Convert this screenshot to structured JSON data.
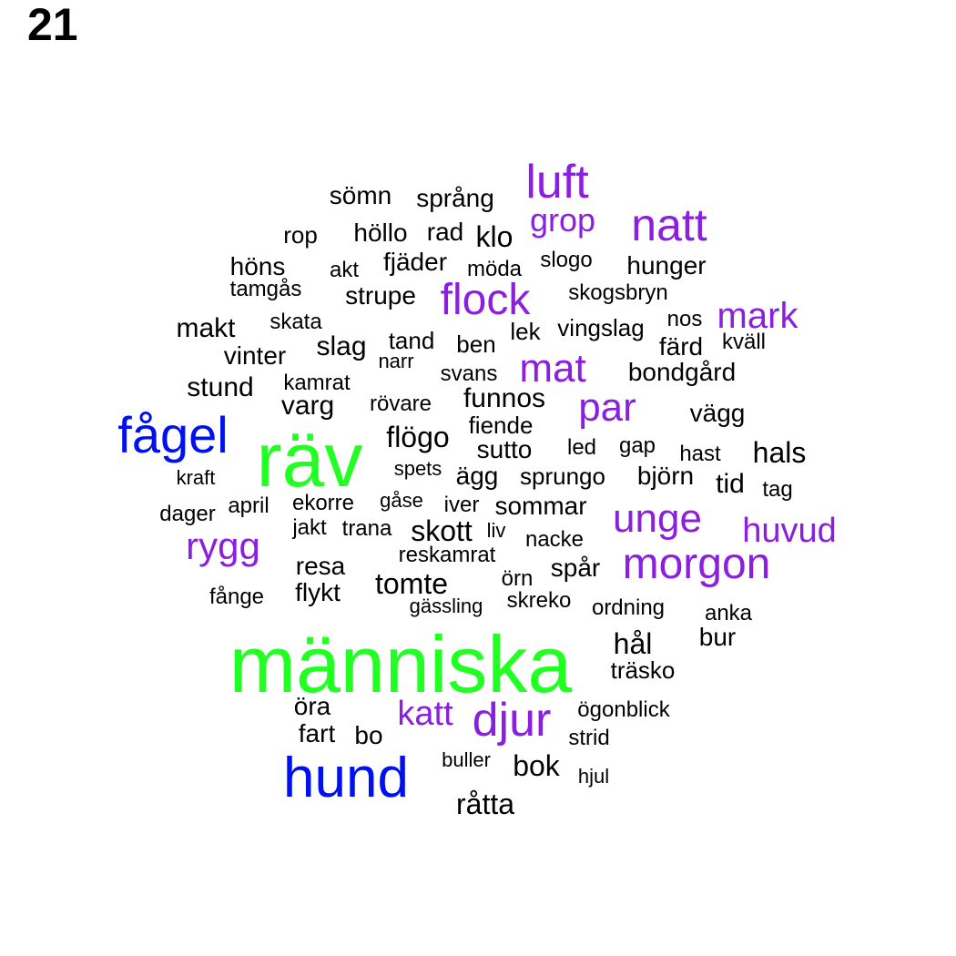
{
  "page_number": "21",
  "colors": {
    "huge": "#22ff22",
    "blue": "#0011ee",
    "purple": "#8a1fe0",
    "black": "#000000"
  },
  "words": [
    {
      "text": "människa",
      "tier": "huge"
    },
    {
      "text": "räv",
      "tier": "huge"
    },
    {
      "text": "hund",
      "tier": "blue"
    },
    {
      "text": "fågel",
      "tier": "blue"
    },
    {
      "text": "luft",
      "tier": "purple"
    },
    {
      "text": "natt",
      "tier": "purple"
    },
    {
      "text": "grop",
      "tier": "purple"
    },
    {
      "text": "flock",
      "tier": "purple"
    },
    {
      "text": "mark",
      "tier": "purple"
    },
    {
      "text": "mat",
      "tier": "purple"
    },
    {
      "text": "par",
      "tier": "purple"
    },
    {
      "text": "unge",
      "tier": "purple"
    },
    {
      "text": "huvud",
      "tier": "purple"
    },
    {
      "text": "rygg",
      "tier": "purple"
    },
    {
      "text": "morgon",
      "tier": "purple"
    },
    {
      "text": "katt",
      "tier": "purple"
    },
    {
      "text": "djur",
      "tier": "purple"
    },
    {
      "text": "sömn",
      "tier": "black"
    },
    {
      "text": "språng",
      "tier": "black"
    },
    {
      "text": "rop",
      "tier": "black"
    },
    {
      "text": "höllo",
      "tier": "black"
    },
    {
      "text": "rad",
      "tier": "black"
    },
    {
      "text": "klo",
      "tier": "black"
    },
    {
      "text": "fjäder",
      "tier": "black"
    },
    {
      "text": "möda",
      "tier": "black"
    },
    {
      "text": "slogo",
      "tier": "black"
    },
    {
      "text": "hunger",
      "tier": "black"
    },
    {
      "text": "höns",
      "tier": "black"
    },
    {
      "text": "akt",
      "tier": "black"
    },
    {
      "text": "tamgås",
      "tier": "black"
    },
    {
      "text": "strupe",
      "tier": "black"
    },
    {
      "text": "skogsbryn",
      "tier": "black"
    },
    {
      "text": "makt",
      "tier": "black"
    },
    {
      "text": "skata",
      "tier": "black"
    },
    {
      "text": "lek",
      "tier": "black"
    },
    {
      "text": "vingslag",
      "tier": "black"
    },
    {
      "text": "nos",
      "tier": "black"
    },
    {
      "text": "vinter",
      "tier": "black"
    },
    {
      "text": "slag",
      "tier": "black"
    },
    {
      "text": "tand",
      "tier": "black"
    },
    {
      "text": "ben",
      "tier": "black"
    },
    {
      "text": "färd",
      "tier": "black"
    },
    {
      "text": "kväll",
      "tier": "black"
    },
    {
      "text": "narr",
      "tier": "black"
    },
    {
      "text": "stund",
      "tier": "black"
    },
    {
      "text": "kamrat",
      "tier": "black"
    },
    {
      "text": "svans",
      "tier": "black"
    },
    {
      "text": "bondgård",
      "tier": "black"
    },
    {
      "text": "varg",
      "tier": "black"
    },
    {
      "text": "rövare",
      "tier": "black"
    },
    {
      "text": "funnos",
      "tier": "black"
    },
    {
      "text": "vägg",
      "tier": "black"
    },
    {
      "text": "fiende",
      "tier": "black"
    },
    {
      "text": "flögo",
      "tier": "black"
    },
    {
      "text": "sutto",
      "tier": "black"
    },
    {
      "text": "led",
      "tier": "black"
    },
    {
      "text": "gap",
      "tier": "black"
    },
    {
      "text": "hast",
      "tier": "black"
    },
    {
      "text": "hals",
      "tier": "black"
    },
    {
      "text": "kraft",
      "tier": "black"
    },
    {
      "text": "spets",
      "tier": "black"
    },
    {
      "text": "ägg",
      "tier": "black"
    },
    {
      "text": "sprungo",
      "tier": "black"
    },
    {
      "text": "björn",
      "tier": "black"
    },
    {
      "text": "tid",
      "tier": "black"
    },
    {
      "text": "tag",
      "tier": "black"
    },
    {
      "text": "dager",
      "tier": "black"
    },
    {
      "text": "april",
      "tier": "black"
    },
    {
      "text": "ekorre",
      "tier": "black"
    },
    {
      "text": "gåse",
      "tier": "black"
    },
    {
      "text": "iver",
      "tier": "black"
    },
    {
      "text": "sommar",
      "tier": "black"
    },
    {
      "text": "jakt",
      "tier": "black"
    },
    {
      "text": "trana",
      "tier": "black"
    },
    {
      "text": "skott",
      "tier": "black"
    },
    {
      "text": "liv",
      "tier": "black"
    },
    {
      "text": "nacke",
      "tier": "black"
    },
    {
      "text": "resa",
      "tier": "black"
    },
    {
      "text": "reskamrat",
      "tier": "black"
    },
    {
      "text": "spår",
      "tier": "black"
    },
    {
      "text": "örn",
      "tier": "black"
    },
    {
      "text": "tomte",
      "tier": "black"
    },
    {
      "text": "fånge",
      "tier": "black"
    },
    {
      "text": "flykt",
      "tier": "black"
    },
    {
      "text": "gässling",
      "tier": "black"
    },
    {
      "text": "skreko",
      "tier": "black"
    },
    {
      "text": "ordning",
      "tier": "black"
    },
    {
      "text": "anka",
      "tier": "black"
    },
    {
      "text": "bur",
      "tier": "black"
    },
    {
      "text": "hål",
      "tier": "black"
    },
    {
      "text": "träsko",
      "tier": "black"
    },
    {
      "text": "öra",
      "tier": "black"
    },
    {
      "text": "ögonblick",
      "tier": "black"
    },
    {
      "text": "fart",
      "tier": "black"
    },
    {
      "text": "bo",
      "tier": "black"
    },
    {
      "text": "strid",
      "tier": "black"
    },
    {
      "text": "buller",
      "tier": "black"
    },
    {
      "text": "bok",
      "tier": "black"
    },
    {
      "text": "hjul",
      "tier": "black"
    },
    {
      "text": "råtta",
      "tier": "black"
    }
  ]
}
